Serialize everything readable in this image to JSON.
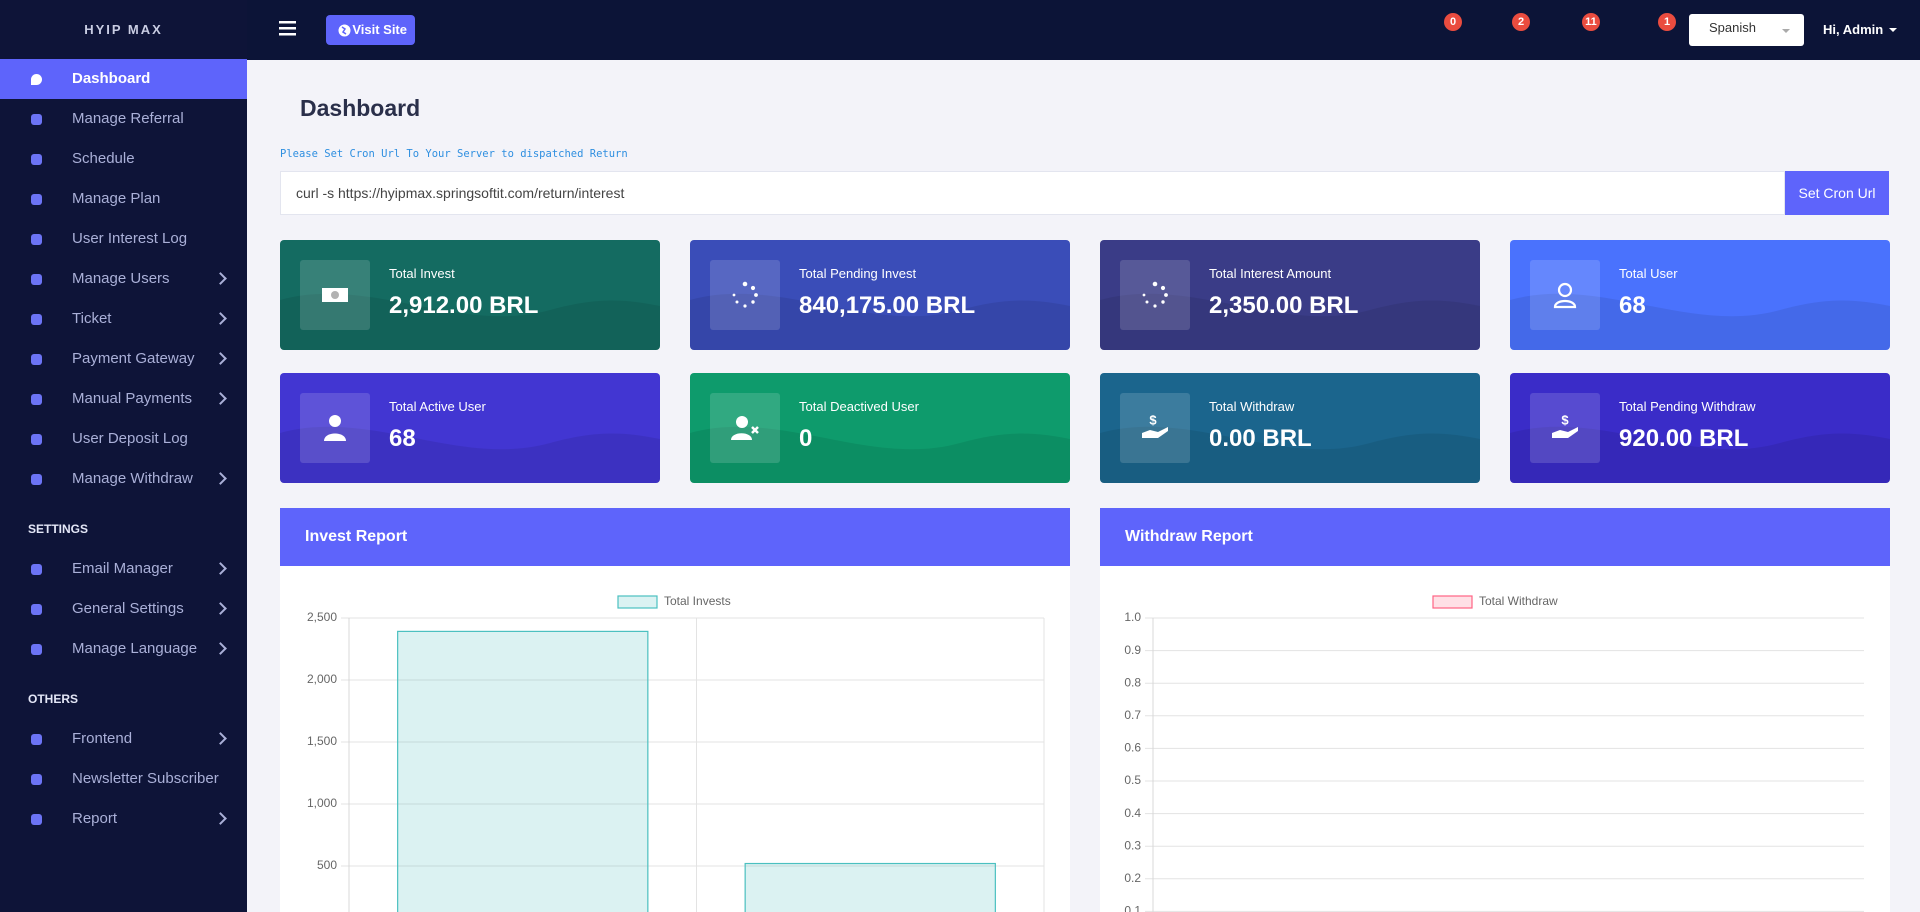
{
  "brand": "HYIP MAX",
  "topbar": {
    "visit_site": "Visit Site",
    "badges": [
      0,
      2,
      11,
      1
    ],
    "language": "Spanish",
    "greeting": "Hi, Admin"
  },
  "sidebar": {
    "groups": [
      {
        "heading": null,
        "items": [
          {
            "label": "Dashboard",
            "active": true,
            "submenu": false
          },
          {
            "label": "Manage Referral",
            "active": false,
            "submenu": false
          },
          {
            "label": "Schedule",
            "active": false,
            "submenu": false
          },
          {
            "label": "Manage Plan",
            "active": false,
            "submenu": false
          },
          {
            "label": "User Interest Log",
            "active": false,
            "submenu": false
          },
          {
            "label": "Manage Users",
            "active": false,
            "submenu": true
          },
          {
            "label": "Ticket",
            "active": false,
            "submenu": true
          },
          {
            "label": "Payment Gateway",
            "active": false,
            "submenu": true
          },
          {
            "label": "Manual Payments",
            "active": false,
            "submenu": true
          },
          {
            "label": "User Deposit Log",
            "active": false,
            "submenu": false
          },
          {
            "label": "Manage Withdraw",
            "active": false,
            "submenu": true
          }
        ]
      },
      {
        "heading": "SETTINGS",
        "items": [
          {
            "label": "Email Manager",
            "active": false,
            "submenu": true
          },
          {
            "label": "General Settings",
            "active": false,
            "submenu": true
          },
          {
            "label": "Manage Language",
            "active": false,
            "submenu": true
          }
        ]
      },
      {
        "heading": "OTHERS",
        "items": [
          {
            "label": "Frontend",
            "active": false,
            "submenu": true
          },
          {
            "label": "Newsletter Subscriber",
            "active": false,
            "submenu": false
          },
          {
            "label": "Report",
            "active": false,
            "submenu": true
          }
        ]
      }
    ]
  },
  "page_title": "Dashboard",
  "cron": {
    "note": "Please Set Cron Url To Your Server to dispatched Return",
    "command": "curl -s https://hyipmax.springsoftit.com/return/interest",
    "button": "Set Cron Url"
  },
  "cards": [
    {
      "label": "Total Invest",
      "value": "2,912.00 BRL",
      "color": "#146b61"
    },
    {
      "label": "Total Pending Invest",
      "value": "840,175.00 BRL",
      "color": "#3a4db8"
    },
    {
      "label": "Total Interest Amount",
      "value": "2,350.00 BRL",
      "color": "#3a3c87"
    },
    {
      "label": "Total User",
      "value": "68",
      "color": "#4a72fd"
    },
    {
      "label": "Total Active User",
      "value": "68",
      "color": "#4236d2"
    },
    {
      "label": "Total Deactived User",
      "value": "0",
      "color": "#0e9b6c"
    },
    {
      "label": "Total Withdraw",
      "value": "0.00 BRL",
      "color": "#1b658d"
    },
    {
      "label": "Total Pending Withdraw",
      "value": "920.00 BRL",
      "color": "#3a2cc8"
    }
  ],
  "invest_report": {
    "title": "Invest Report",
    "type": "bar",
    "legend": "Total Invests",
    "color": "#4bc0c0",
    "categories": [
      null,
      null
    ],
    "values": [
      2392,
      520
    ],
    "ylim": [
      0,
      2500
    ],
    "yticks": [
      {
        "value": 500,
        "label": "500"
      },
      {
        "value": 1000,
        "label": "1,000"
      },
      {
        "value": 1500,
        "label": "1,500"
      },
      {
        "value": 2000,
        "label": "2,000"
      },
      {
        "value": 2500,
        "label": "2,500"
      }
    ]
  },
  "withdraw_report": {
    "title": "Withdraw Report",
    "type": "bar",
    "legend": "Total Withdraw",
    "color": "#ff6384",
    "categories": [],
    "values": [],
    "ylim": [
      0,
      1
    ],
    "yticks": [
      0.1,
      0.2,
      0.3,
      0.4,
      0.5,
      0.6,
      0.7,
      0.8,
      0.9,
      {
        "value": 1,
        "label": "1.0"
      }
    ]
  }
}
